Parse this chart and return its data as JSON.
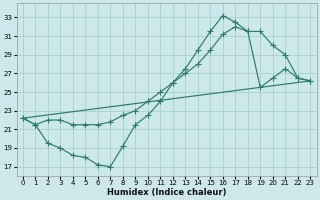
{
  "xlabel": "Humidex (Indice chaleur)",
  "bg_color": "#cce8ea",
  "grid_color": "#aacfcf",
  "line_color": "#2d7a6e",
  "xlim": [
    -0.5,
    23.5
  ],
  "ylim": [
    16,
    34.5
  ],
  "yticks": [
    17,
    19,
    21,
    23,
    25,
    27,
    29,
    31,
    33
  ],
  "xticks": [
    0,
    1,
    2,
    3,
    4,
    5,
    6,
    7,
    8,
    9,
    10,
    11,
    12,
    13,
    14,
    15,
    16,
    17,
    18,
    19,
    20,
    21,
    22,
    23
  ],
  "line1_x": [
    0,
    1,
    2,
    3,
    4,
    5,
    6,
    7,
    8,
    9,
    10,
    11,
    12,
    13,
    14,
    15,
    16,
    17,
    18,
    19,
    20,
    21,
    22,
    23
  ],
  "line1_y": [
    22.2,
    21.5,
    19.5,
    19.0,
    18.2,
    18.0,
    17.2,
    17.0,
    19.2,
    21.5,
    22.5,
    24.0,
    26.0,
    27.5,
    29.5,
    31.5,
    33.2,
    32.5,
    31.5,
    31.5,
    30.0,
    29.0,
    26.5,
    26.2
  ],
  "line2_x": [
    0,
    1,
    2,
    3,
    4,
    5,
    6,
    7,
    8,
    9,
    10,
    11,
    12,
    13,
    14,
    15,
    16,
    17,
    18,
    19,
    20,
    21,
    22,
    23
  ],
  "line2_y": [
    22.2,
    21.5,
    22.0,
    22.0,
    21.5,
    21.5,
    21.5,
    21.8,
    22.5,
    23.0,
    24.0,
    25.0,
    26.0,
    27.0,
    28.0,
    29.5,
    31.2,
    32.0,
    31.5,
    25.5,
    26.5,
    27.5,
    26.5,
    26.2
  ],
  "line3_x": [
    0,
    23
  ],
  "line3_y": [
    22.2,
    26.2
  ]
}
